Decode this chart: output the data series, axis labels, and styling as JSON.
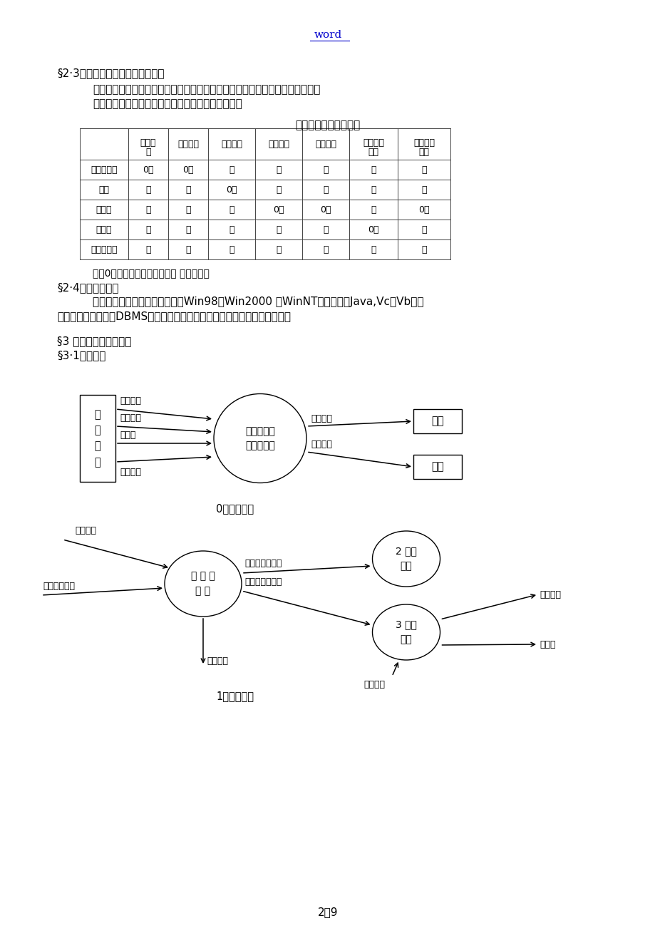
{
  "page_bg": "#ffffff",
  "text_color": "#000000",
  "word_text": "word",
  "word_color": "#0000cc",
  "section_23": "§2·3信息采集与各部门的使用权限",
  "para1_l1": "每学期考试完毕由各系录入成绩，然后由教务科收集。为了信息的安全和数据的",
  "para1_l2": "权威性，对于网上信息的使用权限和责任规定如下：",
  "table_caption": "数据收集前的系统权限",
  "col0_header": "",
  "col_headers": [
    "学生档案",
    "学生奖惩",
    "学生成绩",
    "学籍处理",
    "补考成绩",
    "教学计划管理",
    "各种等级考试"
  ],
  "col_headers_line2": [
    "案",
    "",
    "",
    "",
    "",
    "管理",
    "考试"
  ],
  "col_headers_line1": [
    "学生档",
    "学生奖惩",
    "学生成绩",
    "学籍处理",
    "补考成绩",
    "教学计划",
    "各种等级"
  ],
  "row_headers": [
    "学生工作处",
    "各系",
    "教务科",
    "师资科",
    "院长办公室"
  ],
  "table_data": [
    [
      "0？",
      "0？",
      "？",
      "？",
      "？",
      "？",
      "？"
    ],
    [
      "？",
      "？",
      "0？",
      "？",
      "？",
      "？",
      "？"
    ],
    [
      "？",
      "？",
      "？",
      "0？",
      "0？",
      "？",
      "0？"
    ],
    [
      "？",
      "？",
      "？",
      "？",
      "？",
      "0？",
      "？"
    ],
    [
      "？",
      "？",
      "？",
      "？",
      "？",
      "？",
      "？"
    ]
  ],
  "note": "注：0、登录，修改，处理权。 ？、查询权",
  "section_24": "§2·4用户平台要求",
  "para2_l1": "系统主要使用于高校的局域网，Win98、Win2000 、WinNT等环境下，Java,Vc，Vb连接",
  "para2_l2": "数据库，本系统需要DBMS放学生学籍数据库。可进行查询，修改、处理等。",
  "section_3": "§3 业务逻辑和数据流图",
  "section_31": "§3·1数据流图",
  "diag0_caption": "0层数据流图",
  "diag1_caption": "1层数据流图",
  "page_num": "2／9",
  "mgr_label": "管\n理\n人\n员",
  "center_label": "学生学籍管\n理信息系统",
  "input_label": "输入",
  "student_label": "学生",
  "arr0_1": "查询要求",
  "arr0_2": "管理要求",
  "arr0_3": "统计表",
  "arr0_4": "学生情况",
  "arr0_5": "当前输入",
  "arr0_6": "学生信息",
  "e1_label": "检 查 有\n效 性",
  "e2_label": "2 处理\n要求",
  "e3_label": "3 处理\n查询",
  "arr1_1": "查询要求",
  "arr1_2": "学籍管理要求",
  "arr1_3": "有效的管理要求",
  "arr1_4": "有效的查询要求",
  "arr1_5": "无效输入",
  "arr1_6": "当前输入",
  "arr1_7": "学生情况",
  "arr1_8": "统计表"
}
